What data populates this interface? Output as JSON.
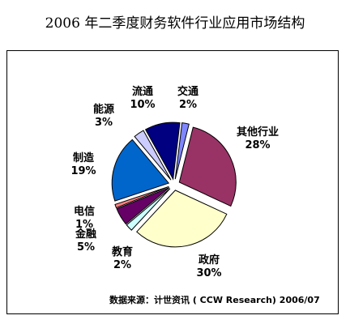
{
  "chart_data": {
    "type": "pie",
    "title": "2006 年二季度财务软件行业应用市场结构",
    "unit": "%",
    "exploded": true,
    "source": "数据来源：计世资讯 ( CCW Research) 2006/07",
    "slices": [
      {
        "label": "交通",
        "value": 2,
        "color": "#7f86ff"
      },
      {
        "label": "其他行业",
        "value": 28,
        "color": "#993366"
      },
      {
        "label": "政府",
        "value": 30,
        "color": "#ffffcc"
      },
      {
        "label": "教育",
        "value": 2,
        "color": "#ccffff"
      },
      {
        "label": "金融",
        "value": 5,
        "color": "#660066"
      },
      {
        "label": "电信",
        "value": 1,
        "color": "#ff8080"
      },
      {
        "label": "制造",
        "value": 19,
        "color": "#0066cc"
      },
      {
        "label": "能源",
        "value": 3,
        "color": "#ccccff"
      },
      {
        "label": "流通",
        "value": 10,
        "color": "#000080"
      }
    ]
  }
}
